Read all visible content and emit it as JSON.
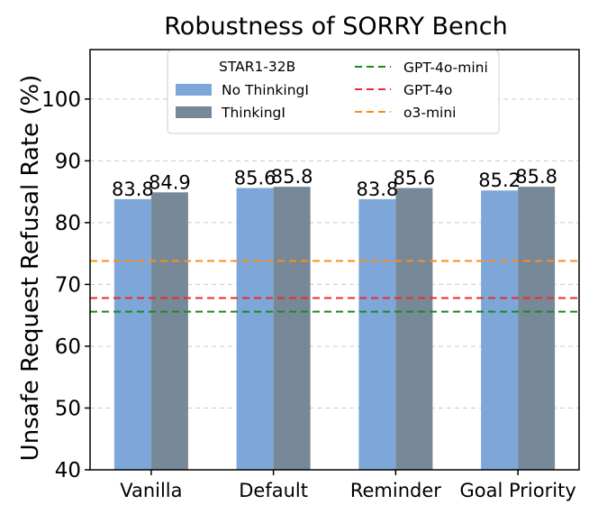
{
  "chart_data": {
    "type": "bar",
    "title": "Robustness of SORRY Bench",
    "xlabel": "",
    "ylabel": "Unsafe Request Refusal Rate (%)",
    "ylim": [
      40,
      108
    ],
    "yticks": [
      40,
      50,
      60,
      70,
      80,
      90,
      100
    ],
    "grid": "horizontal-dashed",
    "categories": [
      "Vanilla",
      "Default",
      "Reminder",
      "Goal Priority"
    ],
    "series": [
      {
        "name": "No ThinkingI",
        "values": [
          83.8,
          85.6,
          83.8,
          85.2
        ],
        "labels": [
          "83.8",
          "85.6",
          "83.8",
          "85.2"
        ],
        "color": "#7da6d9"
      },
      {
        "name": "ThinkingI",
        "values": [
          84.9,
          85.8,
          85.6,
          85.8
        ],
        "labels": [
          "84.9",
          "85.8",
          "85.6",
          "85.8"
        ],
        "color": "#778899"
      }
    ],
    "reference_lines": [
      {
        "name": "GPT-4o-mini",
        "value": 65.6,
        "color": "#1a8a1a"
      },
      {
        "name": "GPT-4o",
        "value": 67.8,
        "color": "#ee2a2a"
      },
      {
        "name": "o3-mini",
        "value": 73.8,
        "color": "#ff8c1a"
      }
    ],
    "legend": {
      "placement": "top-center",
      "group_title": "STAR1-32B"
    }
  }
}
